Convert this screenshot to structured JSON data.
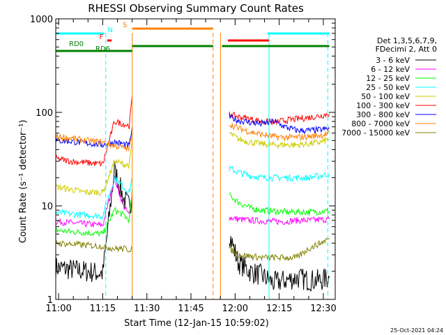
{
  "chart_data": {
    "type": "line",
    "title": "RHESSI Observing Summary Count Rates",
    "xlabel": "Start Time (12-Jan-15 10:59:02)",
    "ylabel": "Count Rate (s⁻¹ detector⁻¹)",
    "ylim": [
      1,
      1000
    ],
    "yscale": "log",
    "xlim_minutes": [
      0,
      95
    ],
    "x_ticks": [
      "11:00",
      "11:15",
      "11:30",
      "11:45",
      "12:00",
      "12:15",
      "12:30"
    ],
    "y_ticks": [
      "1",
      "10",
      "100",
      "1000"
    ],
    "legend_title": [
      "Det 1,3,5,6,7,9,",
      "FDecimi 2, Att 0"
    ],
    "legend_position": "right",
    "timestamp": "25-Oct-2021 04:24",
    "series": [
      {
        "name": "3 - 6 keV",
        "color": "#000000",
        "segments": [
          {
            "x": [
              0,
              5,
              10,
              16,
              20,
              23,
              25,
              26
            ],
            "y": [
              2.2,
              2.1,
              2.0,
              1.9,
              25,
              12,
              10,
              12
            ]
          },
          {
            "x": [
              59,
              62,
              66,
              70,
              74,
              78,
              82,
              86,
              90,
              93
            ],
            "y": [
              5.0,
              2.5,
              2.0,
              1.8,
              1.5,
              1.6,
              1.7,
              1.6,
              1.6,
              1.7
            ]
          }
        ]
      },
      {
        "name": "6 - 12 keV",
        "color": "#ff00ff",
        "segments": [
          {
            "x": [
              0,
              5,
              10,
              16,
              20,
              23,
              25,
              26
            ],
            "y": [
              6.8,
              6.6,
              6.4,
              6.2,
              20,
              10,
              8,
              13
            ]
          },
          {
            "x": [
              59,
              62,
              66,
              70,
              74,
              78,
              82,
              86,
              90,
              93
            ],
            "y": [
              7.5,
              7.2,
              7.0,
              6.9,
              6.8,
              6.8,
              7.0,
              7.0,
              7.1,
              7.2
            ]
          }
        ]
      },
      {
        "name": "12 - 25 keV",
        "color": "#00ff00",
        "segments": [
          {
            "x": [
              0,
              5,
              10,
              16,
              20,
              23,
              25,
              26
            ],
            "y": [
              5.5,
              5.3,
              5.2,
              5.0,
              9,
              8,
              7,
              15
            ]
          },
          {
            "x": [
              59,
              62,
              66,
              70,
              74,
              78,
              82,
              86,
              90,
              93
            ],
            "y": [
              13,
              11,
              9.5,
              9,
              8.8,
              8.6,
              8.6,
              8.6,
              8.7,
              8.8
            ]
          }
        ]
      },
      {
        "name": "25 - 50 keV",
        "color": "#00ffff",
        "segments": [
          {
            "x": [
              0,
              5,
              10,
              16,
              20,
              23,
              25,
              26
            ],
            "y": [
              8.5,
              8.2,
              8.0,
              7.8,
              20,
              16,
              14,
              20
            ]
          },
          {
            "x": [
              59,
              62,
              66,
              70,
              74,
              78,
              82,
              86,
              90,
              93
            ],
            "y": [
              25,
              23,
              21,
              20,
              20,
              20,
              20,
              20,
              21,
              22
            ]
          }
        ]
      },
      {
        "name": "50 - 100 keV",
        "color": "#cccc00",
        "segments": [
          {
            "x": [
              0,
              5,
              10,
              16,
              20,
              23,
              25,
              26
            ],
            "y": [
              16,
              15,
              14,
              14,
              30,
              28,
              27,
              50
            ]
          },
          {
            "x": [
              59,
              62,
              66,
              70,
              74,
              78,
              82,
              86,
              90,
              93
            ],
            "y": [
              60,
              52,
              48,
              46,
              45,
              45,
              45,
              46,
              48,
              52
            ]
          }
        ]
      },
      {
        "name": "100 - 300 keV",
        "color": "#ff0000",
        "segments": [
          {
            "x": [
              0,
              5,
              10,
              16,
              20,
              23,
              25,
              26
            ],
            "y": [
              32,
              30,
              29,
              28,
              80,
              75,
              72,
              150
            ]
          },
          {
            "x": [
              59,
              62,
              66,
              70,
              74,
              78,
              82,
              86,
              90,
              93
            ],
            "y": [
              95,
              90,
              85,
              80,
              78,
              82,
              85,
              88,
              92,
              97
            ]
          }
        ]
      },
      {
        "name": "300 - 800 keV",
        "color": "#0000ff",
        "segments": [
          {
            "x": [
              0,
              5,
              10,
              16,
              20,
              23,
              25,
              26
            ],
            "y": [
              50,
              49,
              47,
              45,
              48,
              46,
              44,
              70
            ]
          },
          {
            "x": [
              59,
              62,
              66,
              70,
              74,
              78,
              82,
              86,
              90,
              93
            ],
            "y": [
              90,
              82,
              78,
              75,
              80,
              70,
              64,
              64,
              65,
              67
            ]
          }
        ]
      },
      {
        "name": "800 - 7000 keV",
        "color": "#ff8000",
        "segments": [
          {
            "x": [
              0,
              5,
              10,
              16,
              20,
              23,
              25,
              26
            ],
            "y": [
              55,
              53,
              50,
              48,
              44,
              42,
              40,
              60
            ]
          },
          {
            "x": [
              59,
              62,
              66,
              70,
              74,
              78,
              82,
              86,
              90,
              93
            ],
            "y": [
              75,
              68,
              62,
              58,
              55,
              54,
              54,
              55,
              57,
              60
            ]
          }
        ]
      },
      {
        "name": "7000 - 15000 keV",
        "color": "#808000",
        "segments": [
          {
            "x": [
              0,
              5,
              10,
              16,
              20,
              23,
              25,
              26
            ],
            "y": [
              4.0,
              3.9,
              3.8,
              3.7,
              3.5,
              3.5,
              3.4,
              3.6
            ]
          },
          {
            "x": [
              59,
              62,
              66,
              70,
              74,
              78,
              82,
              86,
              90,
              93
            ],
            "y": [
              3.5,
              3.0,
              2.9,
              2.8,
              2.8,
              2.8,
              2.8,
              3.5,
              4.0,
              4.5
            ]
          }
        ]
      }
    ],
    "bars": [
      {
        "label": "",
        "color": "#00ffff",
        "row": 0,
        "segments": [
          [
            0,
            16.5
          ],
          [
            72,
            93
          ]
        ]
      },
      {
        "label": "N",
        "color": "#00ffff",
        "row": 0,
        "segments": [],
        "label_x": 18.5
      },
      {
        "label": "F",
        "color": "#ff0000",
        "row": 1,
        "segments": [
          [
            17.5,
            19
          ]
        ],
        "label_x": 15.5
      },
      {
        "label": "S",
        "color": "#ff8000",
        "row": -1,
        "segments": [
          [
            26,
            53.5
          ]
        ],
        "label_x": 23.5
      },
      {
        "label": "",
        "color": "#ff0000",
        "row": 1,
        "segments": [
          [
            58.5,
            72.5
          ]
        ]
      },
      {
        "label": "RD0",
        "color": "#008000",
        "row": 2,
        "segments": [
          [
            26,
            53.5
          ],
          [
            56.5,
            93
          ]
        ],
        "label_x": 7
      },
      {
        "label": "RD6",
        "color": "#008000",
        "row": 3,
        "segments": [
          [
            0,
            26
          ]
        ],
        "label_x": 16
      }
    ],
    "vertical_markers": [
      {
        "x": 17.0,
        "color": "#00ffff",
        "style": "dashed"
      },
      {
        "x": 26.0,
        "color": "#ff8000",
        "style": "solid"
      },
      {
        "x": 53.5,
        "color": "#ff8000",
        "style": "dashed"
      },
      {
        "x": 56.0,
        "color": "#ff8000",
        "style": "solid"
      },
      {
        "x": 72.5,
        "color": "#00ffff",
        "style": "solid"
      },
      {
        "x": 92.5,
        "color": "#00ffff",
        "style": "dashed"
      }
    ]
  }
}
